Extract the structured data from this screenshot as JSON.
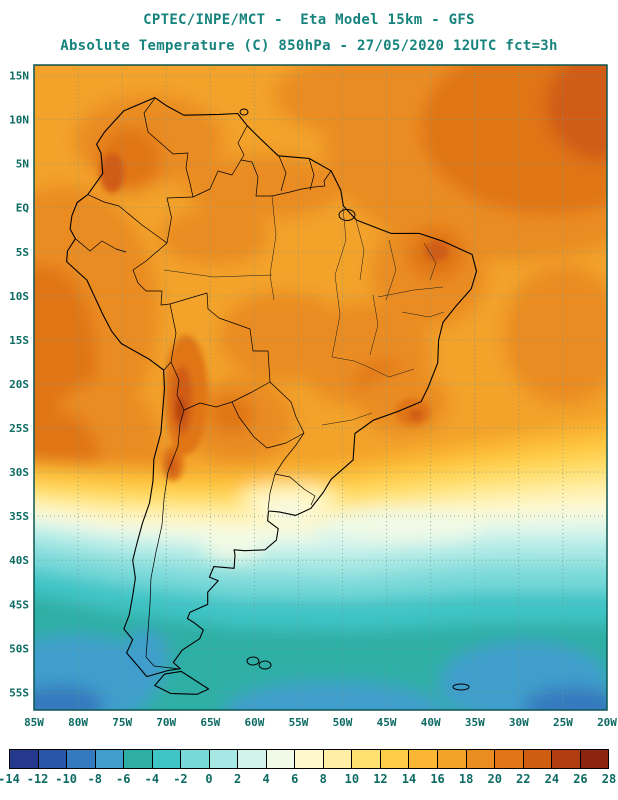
{
  "header": {
    "line1": "CPTEC/INPE/MCT -  Eta Model 15km - GFS",
    "line2": "Absolute Temperature (C) 850hPa - 27/05/2020 12UTC fct=3h"
  },
  "map": {
    "lat_ticks": [
      "15N",
      "10N",
      "5N",
      "EQ",
      "5S",
      "10S",
      "15S",
      "20S",
      "25S",
      "30S",
      "35S",
      "40S",
      "45S",
      "50S",
      "55S"
    ],
    "lat_values": [
      15,
      10,
      5,
      0,
      -5,
      -10,
      -15,
      -20,
      -25,
      -30,
      -35,
      -40,
      -45,
      -50,
      -55
    ],
    "lon_ticks": [
      "85W",
      "80W",
      "75W",
      "70W",
      "65W",
      "60W",
      "55W",
      "50W",
      "45W",
      "40W",
      "35W",
      "30W",
      "25W",
      "20W"
    ],
    "lon_values": [
      -85,
      -80,
      -75,
      -70,
      -65,
      -60,
      -55,
      -50,
      -45,
      -40,
      -35,
      -30,
      -25,
      -20
    ],
    "extent": {
      "lon_min": -85,
      "lon_max": -20,
      "lat_min": -57.0,
      "lat_max": 16.2
    }
  },
  "colorbar": {
    "ticks": [
      -14,
      -12,
      -10,
      -8,
      -6,
      -4,
      -2,
      0,
      2,
      4,
      6,
      8,
      10,
      12,
      14,
      16,
      18,
      20,
      22,
      24,
      26,
      28
    ],
    "colors": [
      "#24388E",
      "#2A56A7",
      "#3579BE",
      "#3F9ECC",
      "#2EAFA5",
      "#40C4C6",
      "#79D9D9",
      "#A8E8E4",
      "#D2F3EC",
      "#F0FAE6",
      "#FFF8CE",
      "#FFEFA6",
      "#FFE070",
      "#FFCE49",
      "#FBB733",
      "#F3A22A",
      "#EA8C20",
      "#E07417",
      "#D05C12",
      "#B13C10",
      "#8B2410"
    ]
  },
  "styles": {
    "title_color": "#17837D",
    "axis_color": "#0E6B63",
    "grid_color": "#6F9A90"
  }
}
